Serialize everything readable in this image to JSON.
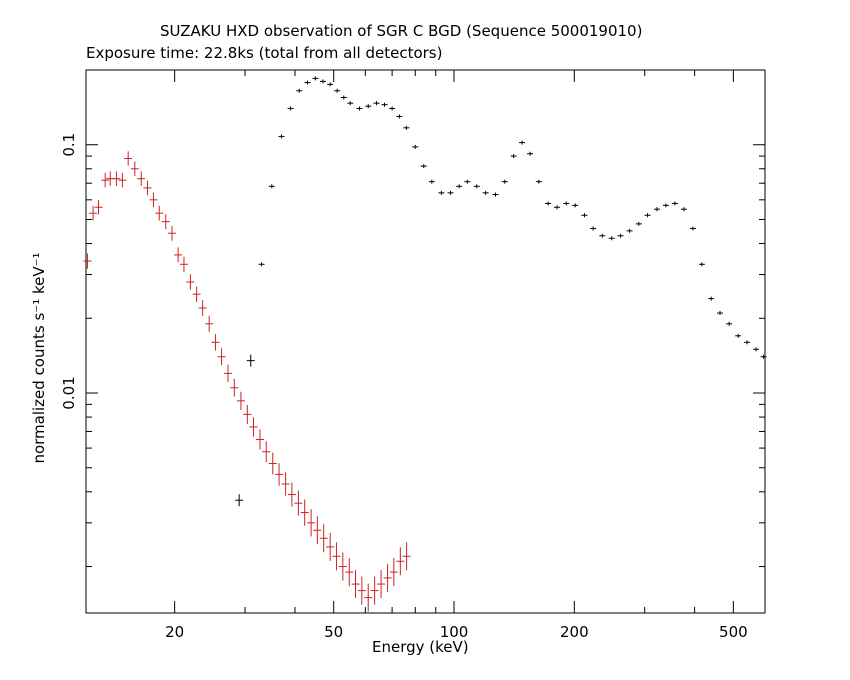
{
  "chart_data": {
    "type": "scatter",
    "title": "SUZAKU HXD observation of SGR C BGD (Sequence 500019010)",
    "subtitle": "Exposure time: 22.8ks (total from all detectors)",
    "xlabel": "Energy (keV)",
    "ylabel": "normalized counts s⁻¹ keV⁻¹",
    "x_scale": "log",
    "y_scale": "log",
    "xlim": [
      12,
      600
    ],
    "ylim": [
      0.0013,
      0.2
    ],
    "x_ticks": [
      20,
      50,
      100,
      200,
      500
    ],
    "x_tick_labels": [
      "20",
      "50",
      "100",
      "200",
      "500"
    ],
    "y_ticks": [
      0.01,
      0.1
    ],
    "y_tick_labels": [
      "0.01",
      "0.1"
    ],
    "series": [
      {
        "color": "#cc2222",
        "points": [
          [
            12.1,
            0.034
          ],
          [
            12.5,
            0.053
          ],
          [
            12.9,
            0.056
          ],
          [
            13.4,
            0.072
          ],
          [
            13.8,
            0.073
          ],
          [
            14.3,
            0.073
          ],
          [
            14.8,
            0.072
          ],
          [
            15.3,
            0.088
          ],
          [
            15.9,
            0.08
          ],
          [
            16.5,
            0.073
          ],
          [
            17.1,
            0.067
          ],
          [
            17.7,
            0.06
          ],
          [
            18.3,
            0.053
          ],
          [
            19,
            0.049
          ],
          [
            19.7,
            0.044
          ],
          [
            20.4,
            0.036
          ],
          [
            21.1,
            0.033
          ],
          [
            21.9,
            0.028
          ],
          [
            22.7,
            0.025
          ],
          [
            23.5,
            0.022
          ],
          [
            24.4,
            0.019
          ],
          [
            25.3,
            0.016
          ],
          [
            26.2,
            0.014
          ],
          [
            27.2,
            0.012
          ],
          [
            28.2,
            0.0105
          ],
          [
            29.3,
            0.0093
          ],
          [
            30.4,
            0.0082
          ],
          [
            31.5,
            0.0073
          ],
          [
            32.7,
            0.0065
          ],
          [
            33.9,
            0.0058
          ],
          [
            35.2,
            0.0052
          ],
          [
            36.5,
            0.0047
          ],
          [
            37.9,
            0.0043
          ],
          [
            39.3,
            0.0039
          ],
          [
            40.8,
            0.0036
          ],
          [
            42.3,
            0.0033
          ],
          [
            43.9,
            0.003
          ],
          [
            45.5,
            0.0028
          ],
          [
            47.2,
            0.0026
          ],
          [
            49,
            0.0024
          ],
          [
            50.8,
            0.0022
          ],
          [
            52.7,
            0.002
          ],
          [
            54.7,
            0.0019
          ],
          [
            56.7,
            0.0017
          ],
          [
            58.8,
            0.0016
          ],
          [
            61,
            0.0015
          ],
          [
            63.3,
            0.0016
          ],
          [
            65.7,
            0.0017
          ],
          [
            68.2,
            0.0018
          ],
          [
            70.7,
            0.0019
          ],
          [
            73.4,
            0.0021
          ],
          [
            76.1,
            0.0022
          ]
        ]
      },
      {
        "color": "#000000",
        "points": [
          [
            29,
            0.0037
          ],
          [
            31,
            0.0135
          ],
          [
            33,
            0.033
          ],
          [
            35,
            0.068
          ],
          [
            37,
            0.108
          ],
          [
            39,
            0.14
          ],
          [
            41,
            0.165
          ],
          [
            43,
            0.178
          ],
          [
            45,
            0.185
          ],
          [
            47,
            0.18
          ],
          [
            49,
            0.175
          ],
          [
            51,
            0.165
          ],
          [
            53,
            0.155
          ],
          [
            55,
            0.147
          ],
          [
            58,
            0.14
          ],
          [
            61,
            0.143
          ],
          [
            64,
            0.147
          ],
          [
            67,
            0.145
          ],
          [
            70,
            0.14
          ],
          [
            73,
            0.13
          ],
          [
            76,
            0.117
          ],
          [
            80,
            0.098
          ],
          [
            84,
            0.082
          ],
          [
            88,
            0.071
          ],
          [
            93,
            0.064
          ],
          [
            98,
            0.064
          ],
          [
            103,
            0.068
          ],
          [
            108,
            0.071
          ],
          [
            114,
            0.068
          ],
          [
            120,
            0.064
          ],
          [
            127,
            0.063
          ],
          [
            134,
            0.071
          ],
          [
            141,
            0.09
          ],
          [
            148,
            0.102
          ],
          [
            155,
            0.092
          ],
          [
            163,
            0.071
          ],
          [
            172,
            0.058
          ],
          [
            181,
            0.056
          ],
          [
            191,
            0.058
          ],
          [
            201,
            0.057
          ],
          [
            212,
            0.052
          ],
          [
            223,
            0.046
          ],
          [
            235,
            0.043
          ],
          [
            248,
            0.042
          ],
          [
            261,
            0.043
          ],
          [
            275,
            0.045
          ],
          [
            290,
            0.048
          ],
          [
            305,
            0.052
          ],
          [
            322,
            0.055
          ],
          [
            339,
            0.057
          ],
          [
            357,
            0.058
          ],
          [
            376,
            0.055
          ],
          [
            396,
            0.046
          ],
          [
            417,
            0.033
          ],
          [
            440,
            0.024
          ],
          [
            463,
            0.021
          ],
          [
            488,
            0.019
          ],
          [
            514,
            0.017
          ],
          [
            541,
            0.016
          ],
          [
            570,
            0.015
          ],
          [
            595,
            0.014
          ]
        ]
      }
    ],
    "grid": false,
    "legend": "none"
  }
}
